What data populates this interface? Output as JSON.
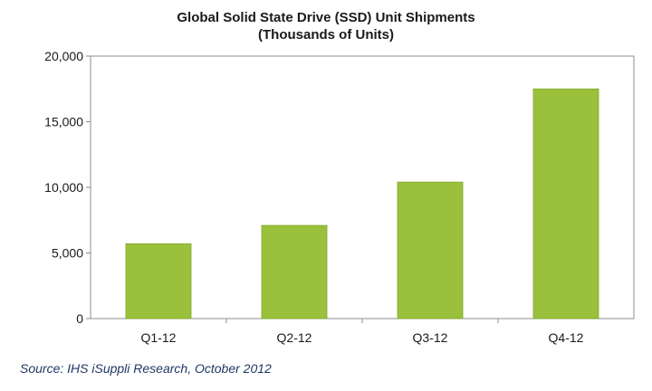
{
  "chart_data": {
    "type": "bar",
    "title": "Global Solid State Drive (SSD) Unit Shipments",
    "subtitle": "(Thousands of Units)",
    "categories": [
      "Q1-12",
      "Q2-12",
      "Q3-12",
      "Q4-12"
    ],
    "values": [
      5700,
      7100,
      10400,
      17500
    ],
    "ylim": [
      0,
      20000
    ],
    "yticks": [
      0,
      5000,
      10000,
      15000,
      20000
    ],
    "ytick_labels": [
      "0",
      "5,000",
      "10,000",
      "15,000",
      "20,000"
    ],
    "xlabel": "",
    "ylabel": "",
    "grid": false,
    "legend": "none",
    "bar_color": "#9bc13c",
    "bar_edge_color": "#7fa52a"
  },
  "source_note": "Source: IHS iSuppli Research, October 2012"
}
